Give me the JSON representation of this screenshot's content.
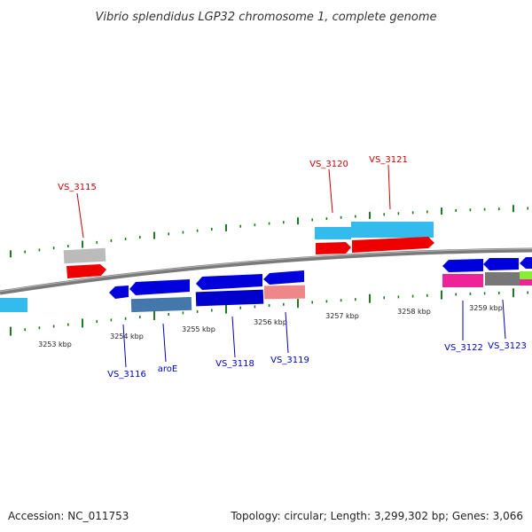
{
  "title": "Vibrio splendidus LGP32 chromosome 1, complete genome",
  "footer": {
    "accession": "Accession: NC_011753",
    "summary": "Topology: circular; Length: 3,299,302 bp; Genes: 3,066"
  },
  "colors": {
    "forward_label": "#cc0000",
    "reverse_label": "#0000bb",
    "backbone": "#808080",
    "tick_mark": "#227722"
  },
  "kbp_ticks": [
    "3253 kbp",
    "3254 kbp",
    "3255 kbp",
    "3256 kbp",
    "3257 kbp",
    "3258 kbp",
    "3259 kbp"
  ],
  "forward_labels": [
    "VS_3115",
    "VS_3120",
    "VS_3121"
  ],
  "reverse_labels": [
    "VS_3116",
    "aroE",
    "VS_3118",
    "VS_3119",
    "VS_3122",
    "VS_3123"
  ]
}
